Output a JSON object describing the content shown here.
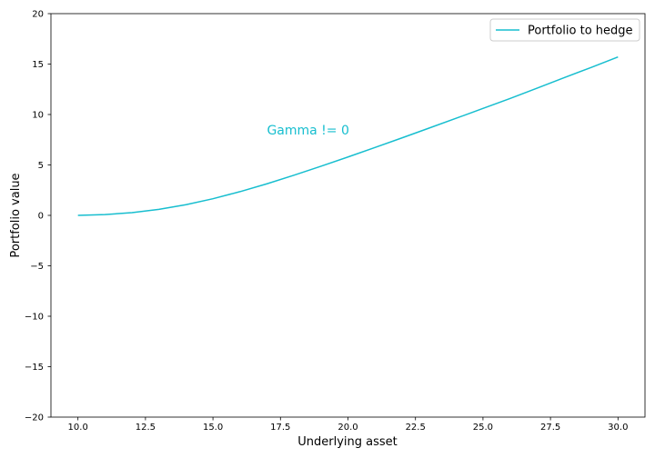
{
  "chart_data": {
    "type": "line",
    "title": "",
    "xlabel": "Underlying asset",
    "ylabel": "Portfolio value",
    "xlim": [
      9.0,
      31.0
    ],
    "ylim": [
      -20,
      20
    ],
    "xticks": [
      10.0,
      12.5,
      15.0,
      17.5,
      20.0,
      22.5,
      25.0,
      27.5,
      30.0
    ],
    "xtick_labels": [
      "10.0",
      "12.5",
      "15.0",
      "17.5",
      "20.0",
      "22.5",
      "25.0",
      "27.5",
      "30.0"
    ],
    "yticks": [
      -20,
      -15,
      -10,
      -5,
      0,
      5,
      10,
      15,
      20
    ],
    "ytick_labels": [
      "−20",
      "−15",
      "−10",
      "−5",
      "0",
      "5",
      "10",
      "15",
      "20"
    ],
    "grid": false,
    "legend_position": "top-right",
    "series": [
      {
        "name": "Portfolio to hedge",
        "color": "#17becf",
        "x": [
          10,
          11,
          12,
          13,
          14,
          15,
          16,
          17,
          18,
          19,
          20,
          21,
          22,
          23,
          24,
          25,
          26,
          27,
          28,
          29,
          30
        ],
        "y": [
          0.0,
          0.08,
          0.27,
          0.6,
          1.06,
          1.65,
          2.35,
          3.13,
          3.98,
          4.87,
          5.79,
          6.73,
          7.68,
          8.65,
          9.62,
          10.6,
          11.58,
          12.61,
          13.64,
          14.66,
          15.7
        ]
      }
    ],
    "annotations": [
      {
        "text": "Gamma != 0",
        "x": 17.0,
        "y": 8.0,
        "color": "#17becf"
      }
    ]
  }
}
